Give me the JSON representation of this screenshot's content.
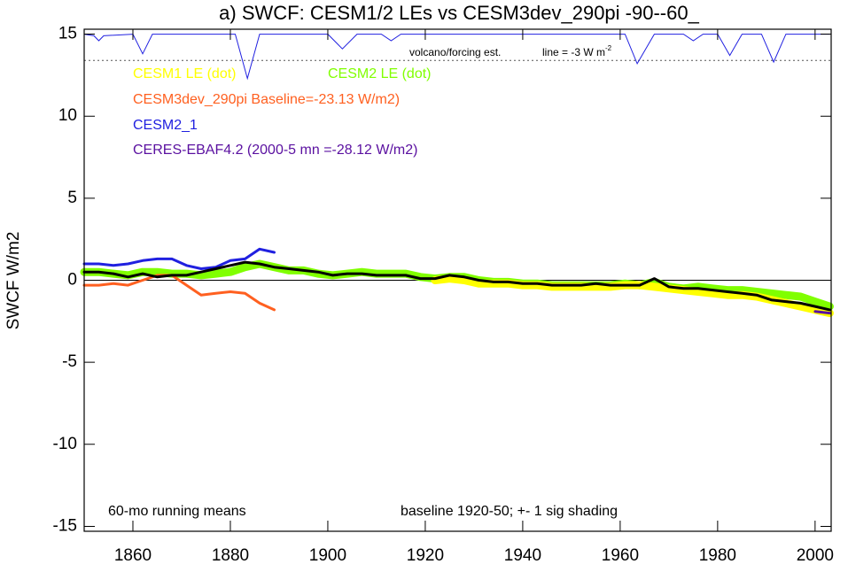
{
  "chart_data": {
    "type": "line",
    "title": "a) SWCF: CESM1/2 LEs vs CESM3dev_290pi -90--60_",
    "y_label": "SWCF W/m2",
    "xlim": [
      1850,
      2003.3
    ],
    "ylim": [
      -15.3,
      15.3
    ],
    "xticks": [
      1860,
      1880,
      1900,
      1920,
      1940,
      1960,
      1980,
      2000
    ],
    "yticks": [
      -15,
      -10,
      -5,
      0,
      5,
      10,
      15
    ],
    "hline": 0,
    "x": [
      1850,
      1853,
      1856,
      1859,
      1862,
      1865,
      1868,
      1871,
      1874,
      1877,
      1880,
      1883,
      1886,
      1889,
      1892,
      1895,
      1898,
      1901,
      1904,
      1907,
      1910,
      1913,
      1916,
      1919,
      1922,
      1925,
      1928,
      1931,
      1934,
      1937,
      1940,
      1943,
      1946,
      1949,
      1952,
      1955,
      1958,
      1961,
      1964,
      1967,
      1970,
      1973,
      1976,
      1979,
      1982,
      1985,
      1988,
      1991,
      1994,
      1997,
      2000,
      2003
    ],
    "series": [
      {
        "name": "CESM2 LE (dot)",
        "color": "#80ff00",
        "shading": true,
        "values": [
          0.5,
          0.5,
          0.4,
          0.3,
          0.5,
          0.5,
          0.4,
          0.4,
          0.3,
          0.4,
          0.5,
          0.8,
          1.0,
          0.8,
          0.6,
          0.6,
          0.4,
          0.3,
          0.4,
          0.5,
          0.4,
          0.4,
          0.4,
          0.2,
          0.1,
          0.2,
          0.2,
          0.0,
          -0.1,
          -0.1,
          -0.2,
          -0.2,
          -0.3,
          -0.3,
          -0.3,
          -0.3,
          -0.3,
          -0.2,
          -0.3,
          -0.1,
          -0.4,
          -0.5,
          -0.4,
          -0.5,
          -0.6,
          -0.6,
          -0.7,
          -0.8,
          -0.9,
          -1.0,
          -1.3,
          -1.6
        ]
      },
      {
        "name": "CESM1 LE (dot)",
        "color": "#ffff00",
        "shading": true,
        "values": [
          null,
          null,
          null,
          null,
          null,
          null,
          null,
          null,
          null,
          null,
          null,
          null,
          null,
          null,
          null,
          null,
          null,
          null,
          null,
          null,
          null,
          null,
          null,
          null,
          0.0,
          0.1,
          0.0,
          -0.2,
          -0.2,
          -0.2,
          -0.3,
          -0.3,
          -0.4,
          -0.4,
          -0.4,
          -0.4,
          -0.4,
          -0.3,
          -0.3,
          -0.4,
          -0.5,
          -0.6,
          -0.7,
          -0.8,
          -0.9,
          -0.9,
          -1.0,
          -1.2,
          -1.4,
          -1.6,
          -1.8,
          -2.0
        ]
      },
      {
        "name": "CESM3dev_290pi Baseline=-23.13 W/m2)",
        "color": "#ff6020",
        "values": [
          -0.3,
          -0.3,
          -0.2,
          -0.3,
          0.0,
          0.3,
          0.3,
          -0.3,
          -0.9,
          -0.8,
          -0.7,
          -0.8,
          -1.4,
          -1.8,
          null,
          null,
          null,
          null,
          null,
          null,
          null,
          null,
          null,
          null,
          null,
          null,
          null,
          null,
          null,
          null,
          null,
          null,
          null,
          null,
          null,
          null,
          null,
          null,
          null,
          null,
          null,
          null,
          null,
          null,
          null,
          null,
          null,
          null,
          null,
          null,
          null,
          null
        ]
      },
      {
        "name": "CESM2_1",
        "color": "#2020e0",
        "values": [
          1.0,
          1.0,
          0.9,
          1.0,
          1.2,
          1.3,
          1.3,
          0.9,
          0.7,
          0.8,
          1.2,
          1.3,
          1.9,
          1.7,
          null,
          null,
          null,
          null,
          null,
          null,
          null,
          null,
          null,
          null,
          null,
          null,
          null,
          null,
          null,
          null,
          null,
          null,
          null,
          null,
          null,
          null,
          null,
          null,
          null,
          null,
          null,
          null,
          null,
          null,
          null,
          null,
          null,
          null,
          null,
          null,
          null,
          null
        ]
      },
      {
        "name": "CERES-EBAF4.2 (2000-5 mn =-28.12 W/m2)",
        "color": "#5a10a0",
        "values": [
          null,
          null,
          null,
          null,
          null,
          null,
          null,
          null,
          null,
          null,
          null,
          null,
          null,
          null,
          null,
          null,
          null,
          null,
          null,
          null,
          null,
          null,
          null,
          null,
          null,
          null,
          null,
          null,
          null,
          null,
          null,
          null,
          null,
          null,
          null,
          null,
          null,
          null,
          null,
          null,
          null,
          null,
          null,
          null,
          null,
          null,
          null,
          null,
          null,
          null,
          -1.9,
          -2.0
        ]
      },
      {
        "color": "#000000",
        "values": [
          0.5,
          0.5,
          0.4,
          0.2,
          0.4,
          0.2,
          0.3,
          0.3,
          0.5,
          0.7,
          0.9,
          1.1,
          1.0,
          0.8,
          0.7,
          0.6,
          0.5,
          0.3,
          0.4,
          0.4,
          0.3,
          0.3,
          0.3,
          0.1,
          0.1,
          0.3,
          0.2,
          0.0,
          -0.1,
          -0.1,
          -0.2,
          -0.2,
          -0.3,
          -0.3,
          -0.3,
          -0.2,
          -0.3,
          -0.3,
          -0.3,
          0.1,
          -0.4,
          -0.5,
          -0.5,
          -0.6,
          -0.7,
          -0.8,
          -0.9,
          -1.2,
          -1.3,
          -1.4,
          -1.6,
          -1.8
        ]
      }
    ],
    "forcing": {
      "label": "volcano/forcing est.",
      "ref_label": "line = -3 W m",
      "ref_label_sup": "-2",
      "color": "#2020e0",
      "ref_line": 13.4,
      "x": [
        1850,
        1852,
        1853,
        1854,
        1860,
        1862,
        1864,
        1881,
        1883.5,
        1886,
        1900,
        1903,
        1906,
        1911,
        1913,
        1915,
        1961,
        1963.5,
        1967,
        1973,
        1975,
        1977,
        1980,
        1982.5,
        1985,
        1989,
        1991.5,
        1994,
        2003
      ],
      "values": [
        15,
        14.9,
        14.6,
        14.9,
        15,
        13.8,
        15,
        15,
        12.3,
        15,
        15,
        14.1,
        15,
        15,
        14.6,
        15,
        15,
        13.2,
        15,
        15,
        14.6,
        15,
        15,
        13.7,
        15,
        15,
        13.3,
        15,
        15
      ]
    },
    "notes": [
      "60-mo running means",
      "baseline 1920-50; +- 1 sig shading"
    ]
  }
}
